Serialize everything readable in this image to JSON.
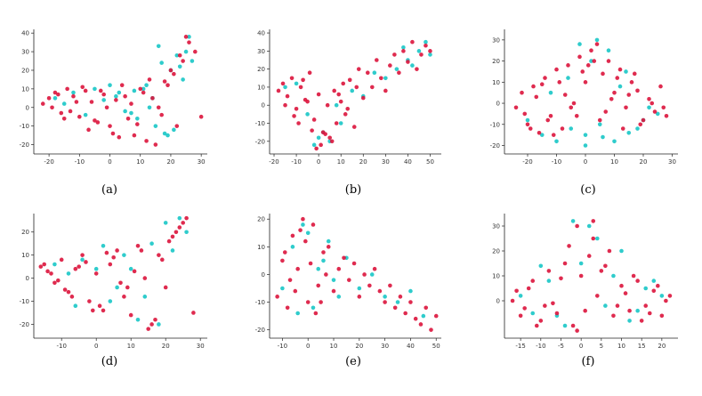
{
  "colors": {
    "series_a": "#18c6c6",
    "series_b": "#dc143c",
    "axis": "#222222"
  },
  "chart_data": [
    {
      "type": "scatter",
      "caption": "(a)",
      "xlim": [
        -25,
        32
      ],
      "ylim": [
        -25,
        42
      ],
      "xticks": [
        -20,
        -10,
        0,
        10,
        20,
        30
      ],
      "yticks": [
        -20,
        -10,
        0,
        10,
        20,
        30,
        40
      ],
      "series": [
        {
          "color": "#18c6c6",
          "x": [
            -18,
            -12,
            -5,
            2,
            8,
            12,
            15,
            18,
            20,
            22,
            25,
            26,
            14,
            9,
            -8,
            -15,
            21,
            24,
            17,
            11,
            5,
            -2,
            0,
            13,
            19,
            23,
            27,
            16,
            7,
            3
          ],
          "y": [
            5,
            8,
            10,
            6,
            9,
            12,
            -10,
            -14,
            20,
            28,
            30,
            38,
            5,
            -6,
            -4,
            2,
            -12,
            15,
            24,
            10,
            -2,
            4,
            12,
            0,
            -15,
            22,
            25,
            33,
            -3,
            8
          ]
        },
        {
          "color": "#dc143c",
          "x": [
            -22,
            -20,
            -18,
            -16,
            -14,
            -12,
            -10,
            -8,
            -6,
            -4,
            -2,
            0,
            2,
            4,
            6,
            8,
            10,
            12,
            14,
            16,
            18,
            20,
            22,
            24,
            26,
            28,
            30,
            -19,
            -15,
            -11,
            -7,
            -3,
            1,
            5,
            9,
            13,
            17,
            21,
            25,
            -17,
            -13,
            -9,
            -5,
            -1,
            3,
            7,
            11,
            15,
            19,
            23
          ],
          "y": [
            2,
            5,
            8,
            -3,
            10,
            6,
            -5,
            9,
            3,
            -8,
            7,
            -10,
            4,
            12,
            -6,
            -15,
            10,
            -18,
            5,
            0,
            14,
            20,
            -10,
            25,
            35,
            30,
            -5,
            0,
            -6,
            3,
            -12,
            9,
            -14,
            6,
            -9,
            15,
            -4,
            18,
            38,
            7,
            -2,
            11,
            -7,
            0,
            -16,
            2,
            8,
            -20,
            12,
            28
          ]
        }
      ]
    },
    {
      "type": "scatter",
      "caption": "(b)",
      "xlim": [
        -22,
        55
      ],
      "ylim": [
        -27,
        42
      ],
      "xticks": [
        -20,
        -10,
        0,
        10,
        20,
        30,
        40,
        50
      ],
      "yticks": [
        -20,
        -10,
        0,
        10,
        20,
        30,
        40
      ],
      "series": [
        {
          "color": "#18c6c6",
          "x": [
            -15,
            -10,
            -5,
            0,
            5,
            10,
            20,
            30,
            35,
            40,
            45,
            48,
            50,
            2,
            -2,
            8,
            15,
            25,
            42,
            38
          ],
          "y": [
            10,
            12,
            -5,
            -18,
            -20,
            -10,
            5,
            15,
            20,
            25,
            30,
            35,
            28,
            -15,
            -22,
            0,
            8,
            18,
            22,
            32
          ]
        },
        {
          "color": "#dc143c",
          "x": [
            -18,
            -16,
            -14,
            -12,
            -10,
            -8,
            -6,
            -4,
            -2,
            0,
            2,
            4,
            6,
            8,
            10,
            12,
            14,
            16,
            18,
            20,
            22,
            24,
            26,
            28,
            30,
            32,
            34,
            36,
            38,
            40,
            42,
            44,
            46,
            48,
            50,
            -15,
            -11,
            -7,
            -3,
            1,
            5,
            9,
            13,
            17,
            -9,
            -5,
            -1,
            3,
            7,
            11
          ],
          "y": [
            8,
            12,
            5,
            15,
            -2,
            10,
            3,
            18,
            -8,
            6,
            -15,
            0,
            -20,
            -10,
            2,
            -5,
            14,
            -12,
            20,
            4,
            18,
            10,
            25,
            15,
            8,
            22,
            28,
            18,
            30,
            24,
            35,
            20,
            28,
            33,
            30,
            0,
            -6,
            14,
            -14,
            -22,
            -18,
            6,
            -2,
            10,
            -10,
            2,
            -24,
            -16,
            8,
            12
          ]
        }
      ]
    },
    {
      "type": "scatter",
      "caption": "(c)",
      "xlim": [
        -28,
        32
      ],
      "ylim": [
        -24,
        35
      ],
      "xticks": [
        -20,
        -10,
        0,
        10,
        20,
        30
      ],
      "yticks": [
        -20,
        -10,
        0,
        10,
        20,
        30
      ],
      "series": [
        {
          "color": "#18c6c6",
          "x": [
            -20,
            -15,
            -10,
            -5,
            0,
            5,
            10,
            15,
            20,
            25,
            -12,
            -6,
            2,
            8,
            14,
            18,
            22,
            4,
            -2,
            0,
            6,
            12
          ],
          "y": [
            -8,
            -15,
            -18,
            -12,
            -15,
            -10,
            -18,
            -14,
            -8,
            -5,
            5,
            12,
            20,
            25,
            15,
            -12,
            -2,
            30,
            28,
            -20,
            -16,
            8
          ]
        },
        {
          "color": "#dc143c",
          "x": [
            -24,
            -22,
            -20,
            -18,
            -16,
            -14,
            -12,
            -10,
            -8,
            -6,
            -4,
            -2,
            0,
            2,
            4,
            6,
            8,
            10,
            12,
            14,
            16,
            18,
            20,
            22,
            24,
            26,
            28,
            -21,
            -17,
            -13,
            -9,
            -5,
            -1,
            3,
            7,
            11,
            15,
            19,
            23,
            27,
            -19,
            -15,
            -11,
            -7,
            -3,
            1,
            5,
            9,
            13,
            17
          ],
          "y": [
            -2,
            5,
            -10,
            8,
            -14,
            12,
            -6,
            16,
            -12,
            18,
            0,
            22,
            10,
            25,
            28,
            14,
            20,
            5,
            16,
            -2,
            10,
            6,
            -8,
            2,
            -4,
            8,
            -6,
            -5,
            3,
            -8,
            10,
            -2,
            15,
            20,
            -4,
            12,
            4,
            -10,
            0,
            -2,
            -12,
            9,
            -15,
            4,
            -6,
            18,
            -8,
            2,
            -12,
            14
          ]
        }
      ]
    },
    {
      "type": "scatter",
      "caption": "(d)",
      "xlim": [
        -18,
        32
      ],
      "ylim": [
        -26,
        28
      ],
      "xticks": [
        -10,
        0,
        10,
        20,
        30
      ],
      "yticks": [
        -20,
        -10,
        0,
        10,
        20
      ],
      "series": [
        {
          "color": "#18c6c6",
          "x": [
            -12,
            -8,
            -4,
            0,
            4,
            8,
            12,
            16,
            20,
            24,
            10,
            14,
            18,
            22,
            6,
            2,
            -6,
            26
          ],
          "y": [
            6,
            2,
            8,
            4,
            -10,
            10,
            -18,
            15,
            24,
            26,
            4,
            -8,
            -20,
            12,
            -4,
            14,
            -12,
            20
          ]
        },
        {
          "color": "#dc143c",
          "x": [
            -16,
            -14,
            -12,
            -10,
            -8,
            -6,
            -4,
            -2,
            0,
            2,
            4,
            6,
            8,
            10,
            12,
            14,
            16,
            18,
            20,
            22,
            24,
            26,
            28,
            -15,
            -11,
            -7,
            -3,
            1,
            5,
            9,
            13,
            17,
            21,
            25,
            -13,
            -9,
            -5,
            -1,
            3,
            7,
            11,
            15,
            19,
            23
          ],
          "y": [
            5,
            3,
            -2,
            8,
            -6,
            4,
            10,
            -10,
            2,
            -14,
            6,
            12,
            -8,
            -16,
            14,
            0,
            -20,
            10,
            -4,
            18,
            22,
            26,
            -15,
            6,
            -1,
            -8,
            7,
            -12,
            9,
            -4,
            12,
            -18,
            16,
            24,
            2,
            -5,
            5,
            -14,
            11,
            -2,
            3,
            -22,
            8,
            20
          ]
        }
      ]
    },
    {
      "type": "scatter",
      "caption": "(e)",
      "xlim": [
        -15,
        52
      ],
      "ylim": [
        -23,
        22
      ],
      "xticks": [
        -10,
        0,
        10,
        20,
        30,
        40,
        50
      ],
      "yticks": [
        -20,
        -10,
        0,
        10,
        20
      ],
      "series": [
        {
          "color": "#18c6c6",
          "x": [
            -10,
            -6,
            -2,
            2,
            6,
            10,
            15,
            20,
            25,
            30,
            35,
            40,
            45,
            0,
            -4,
            4,
            8,
            12
          ],
          "y": [
            -5,
            10,
            18,
            -12,
            5,
            -2,
            6,
            -5,
            0,
            -8,
            -10,
            -6,
            -15,
            15,
            -14,
            2,
            12,
            -8
          ]
        },
        {
          "color": "#dc143c",
          "x": [
            -12,
            -10,
            -8,
            -6,
            -4,
            -2,
            0,
            2,
            4,
            6,
            8,
            10,
            12,
            14,
            16,
            18,
            20,
            22,
            24,
            26,
            28,
            30,
            32,
            34,
            36,
            38,
            40,
            42,
            44,
            46,
            48,
            50,
            -9,
            -5,
            -1,
            3,
            7,
            -7,
            -3,
            1,
            5
          ],
          "y": [
            -8,
            5,
            -12,
            14,
            2,
            20,
            -10,
            18,
            -4,
            8,
            10,
            -6,
            2,
            6,
            -2,
            4,
            -8,
            0,
            -4,
            2,
            -6,
            -10,
            -4,
            -12,
            -8,
            -14,
            -10,
            -16,
            -18,
            -12,
            -20,
            -15,
            8,
            -6,
            12,
            -14,
            0,
            -2,
            16,
            4,
            -10
          ]
        }
      ]
    },
    {
      "type": "scatter",
      "caption": "(f)",
      "xlim": [
        -19,
        24
      ],
      "ylim": [
        -15,
        35
      ],
      "xticks": [
        -15,
        -10,
        -5,
        0,
        5,
        10,
        15,
        20
      ],
      "yticks": [
        0,
        10,
        20,
        30
      ],
      "series": [
        {
          "color": "#18c6c6",
          "x": [
            -15,
            -12,
            -8,
            -4,
            0,
            4,
            8,
            12,
            16,
            20,
            -10,
            -6,
            2,
            6,
            10,
            14,
            18,
            -2
          ],
          "y": [
            2,
            -5,
            8,
            -10,
            15,
            25,
            10,
            -8,
            5,
            2,
            14,
            -6,
            30,
            -2,
            20,
            -4,
            8,
            32
          ]
        },
        {
          "color": "#dc143c",
          "x": [
            -17,
            -16,
            -14,
            -12,
            -10,
            -8,
            -6,
            -4,
            -2,
            0,
            2,
            4,
            6,
            8,
            10,
            12,
            14,
            16,
            18,
            20,
            22,
            -13,
            -9,
            -5,
            -1,
            3,
            7,
            11,
            15,
            19,
            -11,
            -7,
            -3,
            1,
            5,
            9,
            13,
            17,
            21,
            -15,
            -1,
            3
          ],
          "y": [
            0,
            4,
            -3,
            8,
            -8,
            12,
            -5,
            15,
            -10,
            10,
            18,
            2,
            14,
            -6,
            6,
            -4,
            8,
            -2,
            4,
            -6,
            2,
            5,
            -2,
            9,
            -12,
            25,
            20,
            3,
            -8,
            6,
            -10,
            -1,
            22,
            -4,
            12,
            -2,
            10,
            -5,
            0,
            -6,
            30,
            32
          ]
        }
      ]
    }
  ]
}
